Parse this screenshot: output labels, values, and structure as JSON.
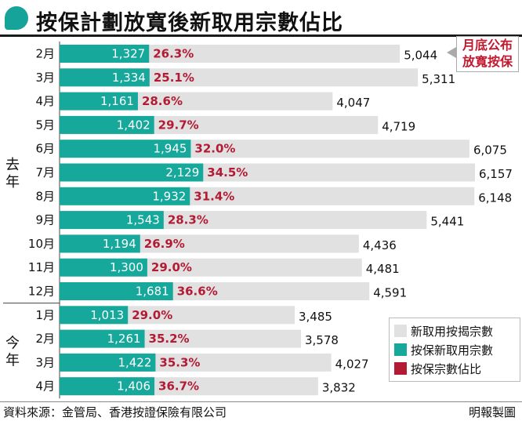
{
  "title": "按保計劃放寬後新取用宗數佔比",
  "callout": {
    "line1": "月底公布",
    "line2": "放寬按保"
  },
  "groups": {
    "last_year": "去年",
    "this_year": "今年"
  },
  "legend": [
    {
      "label": "新取用按揭宗數",
      "color": "#e1e1e1"
    },
    {
      "label": "按保新取用宗數",
      "color": "#17a89c"
    },
    {
      "label": "按保宗數佔比",
      "color": "#b31b34"
    }
  ],
  "footer": {
    "source": "資料來源：金管局、香港按證保險有限公司",
    "credit": "明報製圖"
  },
  "chart_data": {
    "type": "bar",
    "orientation": "horizontal",
    "categories": [
      "2月",
      "3月",
      "4月",
      "5月",
      "6月",
      "7月",
      "8月",
      "9月",
      "10月",
      "11月",
      "12月",
      "1月",
      "2月",
      "3月",
      "4月"
    ],
    "category_groups": [
      {
        "label": "去年",
        "from": 0,
        "to": 10
      },
      {
        "label": "今年",
        "from": 11,
        "to": 14
      }
    ],
    "series": [
      {
        "name": "新取用按揭宗數",
        "values": [
          5044,
          5311,
          4047,
          4719,
          6075,
          6157,
          6148,
          5441,
          4436,
          4481,
          4591,
          3485,
          3578,
          4027,
          3832
        ],
        "labels": [
          "5,044",
          "5,311",
          "4,047",
          "4,719",
          "6,075",
          "6,157",
          "6,148",
          "5,441",
          "4,436",
          "4,481",
          "4,591",
          "3,485",
          "3,578",
          "4,027",
          "3,832"
        ]
      },
      {
        "name": "按保新取用宗數",
        "values": [
          1327,
          1334,
          1161,
          1402,
          1945,
          2129,
          1932,
          1543,
          1194,
          1300,
          1681,
          1013,
          1261,
          1422,
          1406
        ],
        "labels": [
          "1,327",
          "1,334",
          "1,161",
          "1,402",
          "1,945",
          "2,129",
          "1,932",
          "1,543",
          "1,194",
          "1,300",
          "1,681",
          "1,013",
          "1,261",
          "1,422",
          "1,406"
        ]
      },
      {
        "name": "按保宗數佔比",
        "values": [
          26.3,
          25.1,
          28.6,
          29.7,
          32.0,
          34.5,
          31.4,
          28.3,
          26.9,
          29.0,
          36.6,
          29.0,
          35.2,
          35.3,
          36.7
        ],
        "labels": [
          "26.3%",
          "25.1%",
          "28.6%",
          "29.7%",
          "32.0%",
          "34.5%",
          "31.4%",
          "28.3%",
          "26.9%",
          "29.0%",
          "36.6%",
          "29.0%",
          "35.2%",
          "35.3%",
          "36.7%"
        ]
      }
    ],
    "xlim": [
      0,
      6200
    ],
    "grid": false,
    "legend_position": "bottom-right"
  }
}
